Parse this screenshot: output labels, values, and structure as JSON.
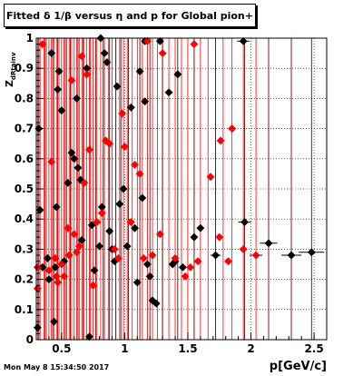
{
  "title": "Fitted δ 1/β versus η and p for Global pion+",
  "timestamp": "Mon May  8 15:34:50 2017",
  "chart_data": {
    "type": "scatter",
    "xlabel": "p[GeV/c]",
    "ylabel": "Z",
    "ylabel_sub": "dRtainv",
    "xlim": [
      0.3,
      2.6
    ],
    "ylim": [
      0,
      1
    ],
    "x_ticks": [
      0.5,
      1,
      1.5,
      2,
      2.5
    ],
    "x_tick_labels": [
      "0.5",
      "1",
      "1.5",
      "2",
      "2.5"
    ],
    "y_ticks": [
      0,
      0.1,
      0.2,
      0.3,
      0.4,
      0.5,
      0.6,
      0.7,
      0.8,
      0.9,
      1
    ],
    "y_tick_labels": [
      "0",
      "0.1",
      "0.2",
      "0.3",
      "0.4",
      "0.5",
      "0.6",
      "0.7",
      "0.8",
      "0.9",
      "1"
    ],
    "grid": true,
    "series": [
      {
        "color": "#000000",
        "marker": "diamond",
        "points": [
          [
            0.31,
            0.04
          ],
          [
            0.32,
            0.7
          ],
          [
            0.33,
            0.43
          ],
          [
            0.35,
            0.24
          ],
          [
            0.39,
            0.27
          ],
          [
            0.4,
            0.2
          ],
          [
            0.42,
            0.95
          ],
          [
            0.44,
            0.06
          ],
          [
            0.45,
            0.24
          ],
          [
            0.46,
            0.44
          ],
          [
            0.47,
            0.83
          ],
          [
            0.48,
            0.89
          ],
          [
            0.5,
            0.76
          ],
          [
            0.52,
            0.26
          ],
          [
            0.55,
            0.52
          ],
          [
            0.58,
            0.62
          ],
          [
            0.6,
            0.6
          ],
          [
            0.62,
            0.8
          ],
          [
            0.63,
            0.57
          ],
          [
            0.65,
            0.53
          ],
          [
            0.66,
            0.33
          ],
          [
            0.7,
            0.9
          ],
          [
            0.72,
            0.01
          ],
          [
            0.74,
            0.38
          ],
          [
            0.76,
            0.23
          ],
          [
            0.8,
            0.31
          ],
          [
            0.82,
            0.44
          ],
          [
            0.84,
            0.95
          ],
          [
            0.86,
            0.92
          ],
          [
            0.88,
            0.36
          ],
          [
            0.9,
            0.3
          ],
          [
            0.92,
            0.26
          ],
          [
            0.94,
            0.84
          ],
          [
            0.96,
            0.45
          ],
          [
            0.99,
            0.5
          ],
          [
            1.02,
            0.31
          ],
          [
            1.05,
            0.77
          ],
          [
            1.08,
            0.37
          ],
          [
            1.1,
            0.19
          ],
          [
            1.12,
            0.89
          ],
          [
            1.14,
            0.47
          ],
          [
            1.16,
            0.79
          ],
          [
            1.18,
            0.25
          ],
          [
            1.2,
            0.21
          ],
          [
            1.22,
            0.13
          ],
          [
            1.25,
            0.12
          ],
          [
            1.28,
            0.99
          ],
          [
            1.35,
            0.82
          ],
          [
            1.38,
            0.25
          ],
          [
            1.42,
            0.88
          ],
          [
            1.46,
            0.24
          ],
          [
            1.55,
            0.34
          ],
          [
            1.6,
            0.37
          ],
          [
            1.72,
            0.28
          ],
          [
            1.94,
            0.99
          ],
          [
            1.95,
            0.39
          ],
          [
            2.14,
            0.32
          ],
          [
            2.32,
            0.28
          ],
          [
            2.48,
            0.29
          ],
          [
            0.81,
            1.0
          ],
          [
            1.16,
            0.99
          ],
          [
            1.4,
            0.26
          ]
        ]
      },
      {
        "color": "#ff0000",
        "marker": "diamond",
        "points": [
          [
            0.31,
            0.17
          ],
          [
            0.31,
            0.24
          ],
          [
            0.4,
            0.23
          ],
          [
            0.42,
            0.59
          ],
          [
            0.45,
            0.27
          ],
          [
            0.47,
            0.19
          ],
          [
            0.5,
            0.25
          ],
          [
            0.52,
            0.21
          ],
          [
            0.55,
            0.37
          ],
          [
            0.58,
            0.86
          ],
          [
            0.6,
            0.35
          ],
          [
            0.62,
            0.29
          ],
          [
            0.64,
            0.31
          ],
          [
            0.66,
            0.94
          ],
          [
            0.68,
            0.52
          ],
          [
            0.7,
            0.88
          ],
          [
            0.72,
            0.63
          ],
          [
            0.75,
            0.18
          ],
          [
            0.78,
            0.39
          ],
          [
            0.82,
            0.42
          ],
          [
            0.85,
            0.66
          ],
          [
            0.88,
            0.65
          ],
          [
            0.92,
            0.3
          ],
          [
            0.95,
            0.27
          ],
          [
            0.98,
            0.75
          ],
          [
            1.0,
            0.64
          ],
          [
            1.05,
            0.39
          ],
          [
            1.08,
            0.58
          ],
          [
            1.12,
            0.55
          ],
          [
            1.15,
            0.27
          ],
          [
            1.18,
            0.99
          ],
          [
            1.22,
            0.28
          ],
          [
            1.28,
            0.35
          ],
          [
            1.3,
            0.95
          ],
          [
            1.4,
            0.27
          ],
          [
            1.48,
            0.21
          ],
          [
            1.52,
            0.24
          ],
          [
            1.55,
            0.98
          ],
          [
            1.58,
            0.26
          ],
          [
            1.68,
            0.54
          ],
          [
            1.75,
            0.34
          ],
          [
            1.76,
            0.66
          ],
          [
            1.82,
            0.26
          ],
          [
            1.85,
            0.7
          ],
          [
            1.94,
            0.3
          ],
          [
            2.04,
            0.28
          ],
          [
            0.35,
            0.98
          ],
          [
            0.46,
            0.21
          ],
          [
            0.56,
            0.28
          ]
        ]
      }
    ],
    "horizontal_errors": [
      {
        "x": 1.94,
        "y": 0.99,
        "dx": 0.05
      },
      {
        "x": 1.95,
        "y": 0.39,
        "dx": 0.05
      },
      {
        "x": 2.14,
        "y": 0.32,
        "dx": 0.07
      },
      {
        "x": 2.32,
        "y": 0.28,
        "dx": 0.08
      },
      {
        "x": 2.48,
        "y": 0.29,
        "dx": 0.1
      },
      {
        "x": 2.04,
        "y": 0.28,
        "dx": 0.05
      },
      {
        "x": 1.72,
        "y": 0.28,
        "dx": 0.04
      }
    ],
    "vertical_errors_red": [
      0.31,
      0.33,
      0.36,
      0.38,
      0.4,
      0.42,
      0.44,
      0.46,
      0.48,
      0.5,
      0.52,
      0.54,
      0.56,
      0.58,
      0.6,
      0.62,
      0.64,
      0.66,
      0.68,
      0.7,
      0.72,
      0.75,
      0.78,
      0.81,
      0.84,
      0.87,
      0.9,
      0.93,
      0.96,
      0.99,
      1.02,
      1.06,
      1.1,
      1.14,
      1.18,
      1.22,
      1.26,
      1.3,
      1.35,
      1.4,
      1.45,
      1.5,
      1.55,
      1.6,
      1.66,
      1.72,
      1.78,
      1.85,
      1.94,
      2.04
    ],
    "vertical_errors_dark": [
      0.32,
      0.37,
      0.43,
      0.47,
      0.53,
      0.57,
      0.63,
      0.67,
      0.73,
      0.77,
      0.83,
      0.88,
      0.93,
      0.97,
      1.03,
      1.12,
      1.2,
      1.3,
      1.42,
      1.55,
      1.72,
      1.95,
      2.14,
      2.32,
      2.48
    ]
  }
}
